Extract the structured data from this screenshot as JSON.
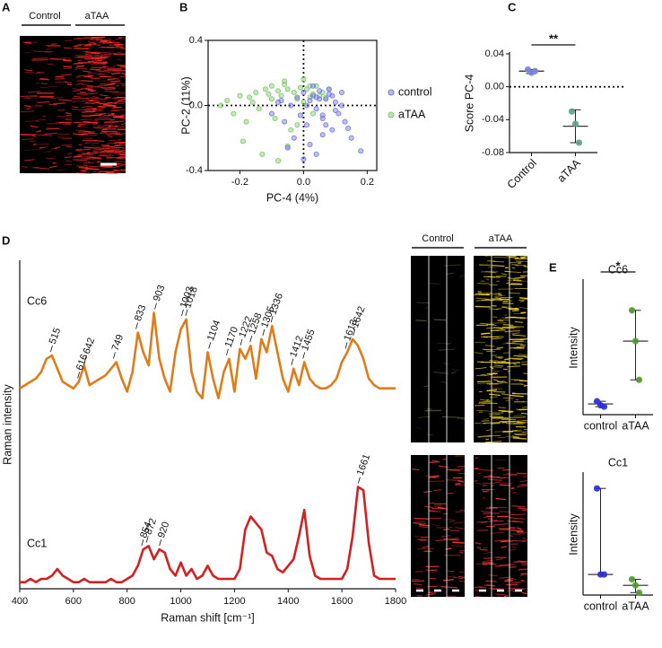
{
  "images": [
    {
      "panel": "A",
      "columns": [
        "Control",
        "aTAA"
      ]
    },
    {
      "columns": [
        "Control",
        "aTAA"
      ]
    }
  ],
  "chart_data": [
    {
      "type": "scatter",
      "panel": "B",
      "x_label": "PC-4 (4%)",
      "y_label": "PC-2 (11%)",
      "xlim": [
        -0.3,
        0.23
      ],
      "xticks": [
        -0.2,
        {
          "value": 0,
          "label": "0.0"
        },
        0.2
      ],
      "ylim": [
        -0.4,
        0.4
      ],
      "yticks": [
        -0.4,
        {
          "value": 0,
          "label": "0.0"
        },
        0.4
      ],
      "legend": "right",
      "series": [
        {
          "name": "control",
          "color": "#6f78e0",
          "x": [
            -0.1,
            -0.08,
            -0.06,
            -0.04,
            -0.03,
            -0.02,
            -0.01,
            0.0,
            0.01,
            0.02,
            0.03,
            0.04,
            0.05,
            0.06,
            0.07,
            0.08,
            0.09,
            0.1,
            0.11,
            0.12,
            0.13,
            0.15,
            0.18,
            0.02,
            0.04,
            0.06,
            0.08,
            0.1,
            -0.05,
            0.0,
            0.03,
            0.05,
            0.07,
            0.09,
            0.12,
            -0.07,
            0.01,
            0.04,
            0.06,
            0.14
          ],
          "values": [
            -0.05,
            0.02,
            -0.1,
            0.0,
            -0.2,
            0.05,
            -0.06,
            0.08,
            -0.12,
            0.03,
            0.06,
            -0.02,
            0.09,
            -0.08,
            0.04,
            0.07,
            -0.15,
            0.02,
            -0.05,
            0.0,
            -0.1,
            -0.2,
            -0.28,
            -0.24,
            -0.3,
            -0.18,
            0.1,
            -0.03,
            -0.26,
            -0.33,
            0.12,
            0.04,
            -0.12,
            0.06,
            0.08,
            0.03,
            0.0,
            0.05,
            -0.06,
            -0.14
          ]
        },
        {
          "name": "aTAA",
          "color": "#7fc86a",
          "x": [
            -0.26,
            -0.24,
            -0.22,
            -0.2,
            -0.18,
            -0.17,
            -0.15,
            -0.14,
            -0.12,
            -0.11,
            -0.1,
            -0.09,
            -0.08,
            -0.07,
            -0.06,
            -0.05,
            -0.04,
            -0.03,
            -0.02,
            -0.01,
            0.0,
            0.01,
            0.02,
            0.03,
            0.04,
            0.05,
            0.06,
            0.07,
            -0.19,
            -0.13,
            -0.08,
            -0.05,
            -0.02,
            0.0,
            0.03,
            -0.16,
            -0.1,
            -0.06,
            0.02,
            0.08
          ],
          "values": [
            0.0,
            0.03,
            -0.05,
            0.06,
            -0.1,
            0.05,
            0.08,
            -0.02,
            0.1,
            0.07,
            0.12,
            -0.08,
            0.09,
            0.06,
            0.13,
            0.1,
            -0.15,
            0.08,
            0.04,
            0.11,
            0.16,
            0.1,
            0.05,
            0.07,
            0.12,
            0.06,
            0.08,
            0.05,
            -0.22,
            -0.3,
            -0.34,
            -0.25,
            -0.12,
            0.02,
            -0.05,
            0.02,
            0.04,
            0.15,
            0.12,
            0.1
          ]
        }
      ]
    },
    {
      "type": "dot",
      "panel": "C",
      "y_label": "Score PC-4",
      "categories": [
        "Control",
        "aTAA"
      ],
      "colors": [
        "#7b86e0",
        "#5f9f8a"
      ],
      "points": [
        [
          0.021,
          0.017,
          0.019
        ],
        [
          -0.03,
          -0.045,
          -0.068
        ]
      ],
      "center": [
        0.019,
        -0.048
      ],
      "low": [
        0.016,
        -0.068
      ],
      "high": [
        0.021,
        -0.028
      ],
      "ylim": [
        -0.08,
        0.04
      ],
      "yticks": [
        0.04,
        {
          "value": 0,
          "label": "0.00"
        },
        -0.04,
        -0.08
      ],
      "reference_line": 0,
      "significance": "**"
    },
    {
      "type": "line",
      "panel": "D",
      "x_label": "Raman shift [cm⁻¹]",
      "y_label": "Raman intensity",
      "xlim": [
        400,
        1800
      ],
      "xticks": [
        400,
        600,
        800,
        1000,
        1200,
        1400,
        1600,
        1800
      ],
      "ylim": [
        0,
        100
      ],
      "x": [
        400,
        420,
        440,
        460,
        480,
        500,
        520,
        540,
        560,
        580,
        600,
        620,
        640,
        660,
        680,
        700,
        720,
        740,
        760,
        780,
        800,
        820,
        840,
        860,
        880,
        900,
        920,
        940,
        960,
        980,
        1000,
        1020,
        1040,
        1060,
        1080,
        1100,
        1120,
        1140,
        1160,
        1180,
        1200,
        1220,
        1240,
        1260,
        1280,
        1300,
        1320,
        1340,
        1360,
        1380,
        1400,
        1420,
        1440,
        1460,
        1480,
        1500,
        1520,
        1540,
        1560,
        1580,
        1600,
        1620,
        1640,
        1660,
        1680,
        1700,
        1720,
        1740,
        1760,
        1780,
        1800
      ],
      "series": [
        {
          "name": "Cc6",
          "color": "#e07b1a",
          "values": [
            61,
            62,
            63,
            64,
            66,
            70,
            71,
            67,
            63,
            62,
            61,
            63,
            68,
            62,
            63,
            64,
            65,
            67,
            69,
            64,
            60,
            66,
            78,
            72,
            68,
            84,
            70,
            64,
            60,
            72,
            79,
            82,
            66,
            60,
            58,
            72,
            64,
            58,
            66,
            70,
            60,
            73,
            70,
            74,
            64,
            76,
            72,
            80,
            72,
            64,
            60,
            67,
            62,
            69,
            64,
            62,
            61,
            61,
            62,
            64,
            69,
            72,
            76,
            74,
            70,
            64,
            62,
            61,
            61,
            61,
            61
          ],
          "peaks": [
            515,
            616,
            642,
            749,
            833,
            903,
            1003,
            1018,
            1104,
            1170,
            1222,
            1258,
            1305,
            1336,
            1412,
            1455,
            1613,
            1642
          ]
        },
        {
          "name": "Cc1",
          "color": "#d42020",
          "values": [
            2,
            2,
            3,
            2,
            3,
            3,
            4,
            6,
            4,
            3,
            2,
            2,
            3,
            2,
            2,
            2,
            2,
            3,
            2,
            2,
            3,
            4,
            7,
            12,
            13,
            9,
            12,
            11,
            6,
            4,
            8,
            4,
            6,
            3,
            4,
            7,
            4,
            3,
            3,
            3,
            3,
            6,
            18,
            22,
            20,
            18,
            11,
            10,
            6,
            5,
            7,
            9,
            16,
            24,
            10,
            4,
            3,
            3,
            3,
            3,
            3,
            6,
            16,
            31,
            30,
            14,
            4,
            3,
            3,
            3,
            3
          ],
          "peaks": [
            854,
            872,
            920,
            1661
          ]
        }
      ]
    },
    {
      "type": "dot",
      "panel": "E",
      "title": "Cc6",
      "y_label": "Intensity",
      "categories": [
        "control",
        "aTAA"
      ],
      "colors": [
        "#2b2bd6",
        "#4e9a2c"
      ],
      "points": [
        [
          10,
          7,
          6
        ],
        [
          78,
          55,
          26
        ]
      ],
      "center": [
        8,
        55
      ],
      "low": [
        6,
        26
      ],
      "high": [
        10,
        78
      ],
      "ylim": [
        0,
        100
      ],
      "significance": "*"
    },
    {
      "type": "dot",
      "title": "Cc1",
      "y_label": "Intensity",
      "categories": [
        "control",
        "aTAA"
      ],
      "colors": [
        "#2b2bd6",
        "#4e9a2c"
      ],
      "points": [
        [
          88,
          17,
          17
        ],
        [
          13,
          8,
          2
        ]
      ],
      "center": [
        17,
        8
      ],
      "low": [
        17,
        2
      ],
      "high": [
        88,
        13
      ],
      "ylim": [
        0,
        100
      ]
    }
  ]
}
